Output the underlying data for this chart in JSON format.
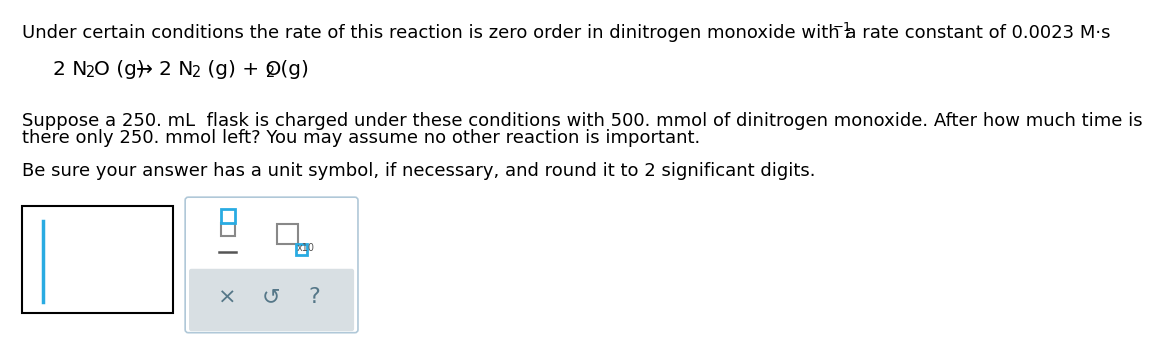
{
  "bg_color": "#ffffff",
  "text_color": "#000000",
  "cyan_color": "#29ABE2",
  "cyan_light": "#4DC8E8",
  "gray_box_color": "#d8dfe3",
  "toolbar_border": "#b0c8d8",
  "font_size_main": 13.0,
  "font_size_eq": 14.5,
  "line1_text": "Under certain conditions the rate of this reaction is zero order in dinitrogen monoxide with a rate constant of 0.0023 M·s",
  "sup_text": "−1",
  "colon": ":",
  "para1_line1": "Suppose a 250. mL  flask is charged under these conditions with 500. mmol of dinitrogen monoxide. After how much time is",
  "para1_line2": "there only 250. mmol left? You may assume no other reaction is important.",
  "para2": "Be sure your answer has a unit symbol, if necessary, and round it to 2 significant digits."
}
